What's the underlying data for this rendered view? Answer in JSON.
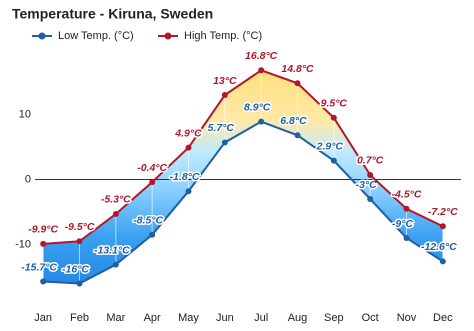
{
  "chart_data": {
    "type": "line",
    "title": "Temperature - Kiruna, Sweden",
    "categories": [
      "Jan",
      "Feb",
      "Mar",
      "Apr",
      "May",
      "Jun",
      "Jul",
      "Aug",
      "Sep",
      "Oct",
      "Nov",
      "Dec"
    ],
    "series": [
      {
        "name": "Low Temp. (°C)",
        "color": "#1f5fa5",
        "values": [
          -15.7,
          -16,
          -13.1,
          -8.5,
          -1.8,
          5.7,
          8.9,
          6.8,
          2.9,
          -3,
          -9,
          -12.6
        ],
        "value_labels": [
          "-15.7°C",
          "-16°C",
          "-13.1°C",
          "-8.5°C",
          "-1.8°C",
          "5.7°C",
          "8.9°C",
          "6.8°C",
          "2.9°C",
          "-3°C",
          "-9°C",
          "-12.6°C"
        ]
      },
      {
        "name": "High Temp. (°C)",
        "color": "#b2182b",
        "values": [
          -9.9,
          -9.5,
          -5.3,
          -0.4,
          4.9,
          13,
          16.8,
          14.8,
          9.5,
          0.7,
          -4.5,
          -7.2
        ],
        "value_labels": [
          "-9.9°C",
          "-9.5°C",
          "-5.3°C",
          "-0.4°C",
          "4.9°C",
          "13°C",
          "16.8°C",
          "14.8°C",
          "9.5°C",
          "0.7°C",
          "-4.5°C",
          "-7.2°C"
        ]
      }
    ],
    "ylim": [
      -19,
      21
    ],
    "yticks": [
      -10,
      0,
      10
    ],
    "grid": false
  }
}
